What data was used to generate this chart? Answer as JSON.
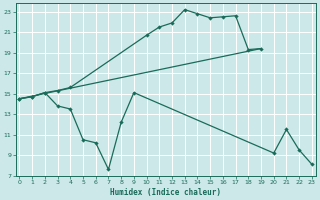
{
  "bg_color": "#cce8e8",
  "grid_color": "#ffffff",
  "line_color": "#1a6b5a",
  "line1_x": [
    0,
    1,
    2,
    3,
    4,
    10,
    11,
    12,
    13,
    14,
    15,
    16,
    17,
    18,
    19
  ],
  "line1_y": [
    14.5,
    14.7,
    15.1,
    15.3,
    15.6,
    20.7,
    21.5,
    21.9,
    23.2,
    22.8,
    22.4,
    22.5,
    22.6,
    19.3,
    19.4
  ],
  "line2_x": [
    0,
    19
  ],
  "line2_y": [
    14.5,
    19.4
  ],
  "line3_x": [
    0,
    1,
    2,
    3,
    4,
    5,
    6,
    7,
    8,
    9,
    20,
    21,
    22,
    23
  ],
  "line3_y": [
    14.5,
    14.7,
    15.1,
    13.8,
    13.5,
    10.5,
    10.2,
    7.6,
    12.2,
    15.1,
    9.2,
    11.5,
    9.5,
    8.1
  ],
  "xlim": [
    -0.3,
    23.3
  ],
  "ylim": [
    7,
    23.8
  ],
  "yticks": [
    7,
    9,
    11,
    13,
    15,
    17,
    19,
    21,
    23
  ],
  "xticks": [
    0,
    1,
    2,
    3,
    4,
    5,
    6,
    7,
    8,
    9,
    10,
    11,
    12,
    13,
    14,
    15,
    16,
    17,
    18,
    19,
    20,
    21,
    22,
    23
  ],
  "xlabel": "Humidex (Indice chaleur)"
}
